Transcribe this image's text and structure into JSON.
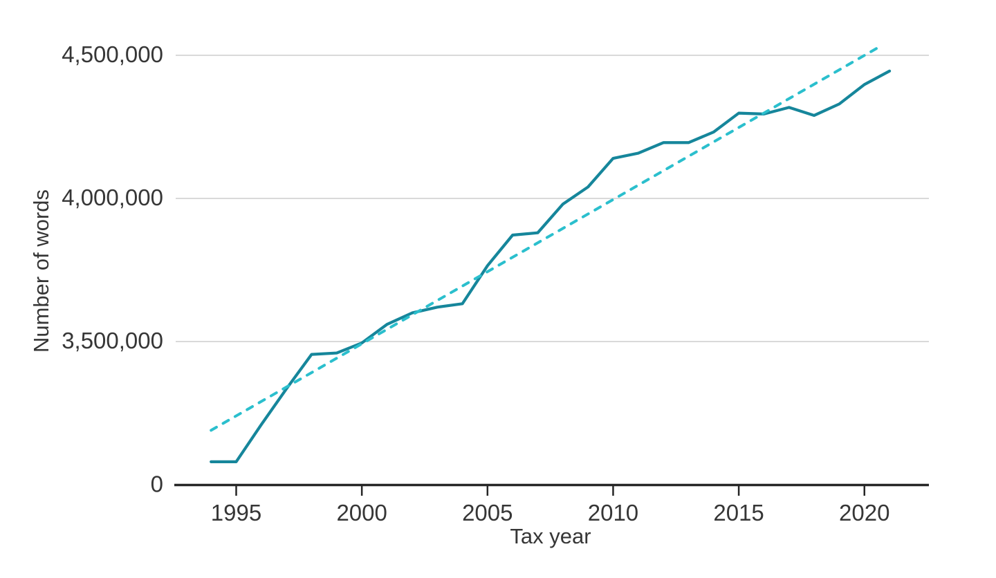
{
  "chart_data": {
    "type": "line",
    "title": "",
    "xlabel": "Tax year",
    "ylabel": "Number of words",
    "x": [
      1994,
      1995,
      1996,
      1997,
      1998,
      1999,
      2000,
      2001,
      2002,
      2003,
      2004,
      2005,
      2006,
      2007,
      2008,
      2009,
      2010,
      2011,
      2012,
      2013,
      2014,
      2015,
      2016,
      2017,
      2018,
      2019,
      2020,
      2021
    ],
    "series": [
      {
        "name": "number-of-words",
        "style": "solid",
        "values": [
          3080000,
          3080000,
          3210000,
          3335000,
          3455000,
          3460000,
          3495000,
          3560000,
          3600000,
          3620000,
          3632000,
          3765000,
          3872000,
          3880000,
          3980000,
          4040000,
          4140000,
          4158000,
          4195000,
          4195000,
          4232000,
          4298000,
          4295000,
          4318000,
          4290000,
          4330000,
          4398000,
          4445000
        ]
      },
      {
        "name": "linear-trend",
        "style": "dashed",
        "points": [
          {
            "x": 1994,
            "value": 3190000
          },
          {
            "x": 2020.7,
            "value": 4535000
          }
        ]
      }
    ],
    "x_ticks": [
      {
        "value": 1995,
        "label": "1995"
      },
      {
        "value": 2000,
        "label": "2000"
      },
      {
        "value": 2005,
        "label": "2005"
      },
      {
        "value": 2010,
        "label": "2010"
      },
      {
        "value": 2015,
        "label": "2015"
      },
      {
        "value": 2020,
        "label": "2020"
      }
    ],
    "y_ticks": [
      {
        "value": 4500000,
        "label": "4,500,000"
      },
      {
        "value": 4000000,
        "label": "4,000,000"
      },
      {
        "value": 3500000,
        "label": "3,500,000"
      },
      {
        "value": 0,
        "label": "0"
      }
    ],
    "axis_note": "broken y-axis: 0 shown directly below 3,500,000",
    "grid": "horizontal gridlines only, no legend",
    "colors": {
      "line": "#16869B",
      "trend": "#2BBFCD",
      "grid": "#D9D9D9",
      "axis": "#262626",
      "text": "#363636",
      "background": "#FFFFFF"
    }
  }
}
